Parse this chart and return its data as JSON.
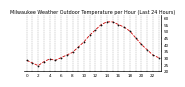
{
  "title": "Milwaukee Weather Outdoor Temperature per Hour (Last 24 Hours)",
  "hours": [
    0,
    1,
    2,
    3,
    4,
    5,
    6,
    7,
    8,
    9,
    10,
    11,
    12,
    13,
    14,
    15,
    16,
    17,
    18,
    19,
    20,
    21,
    22,
    23
  ],
  "temps": [
    28,
    26,
    24,
    27,
    29,
    28,
    30,
    32,
    34,
    38,
    42,
    47,
    51,
    55,
    57,
    57,
    55,
    53,
    50,
    45,
    40,
    36,
    32,
    30
  ],
  "line_color": "#cc0000",
  "marker_color": "#000000",
  "grid_color": "#888888",
  "bg_color": "#ffffff",
  "ylim": [
    20,
    62
  ],
  "yticks": [
    20,
    25,
    30,
    35,
    40,
    45,
    50,
    55,
    60
  ],
  "ylabel_fontsize": 3.0,
  "title_fontsize": 3.5,
  "xlabel_fontsize": 3.0
}
